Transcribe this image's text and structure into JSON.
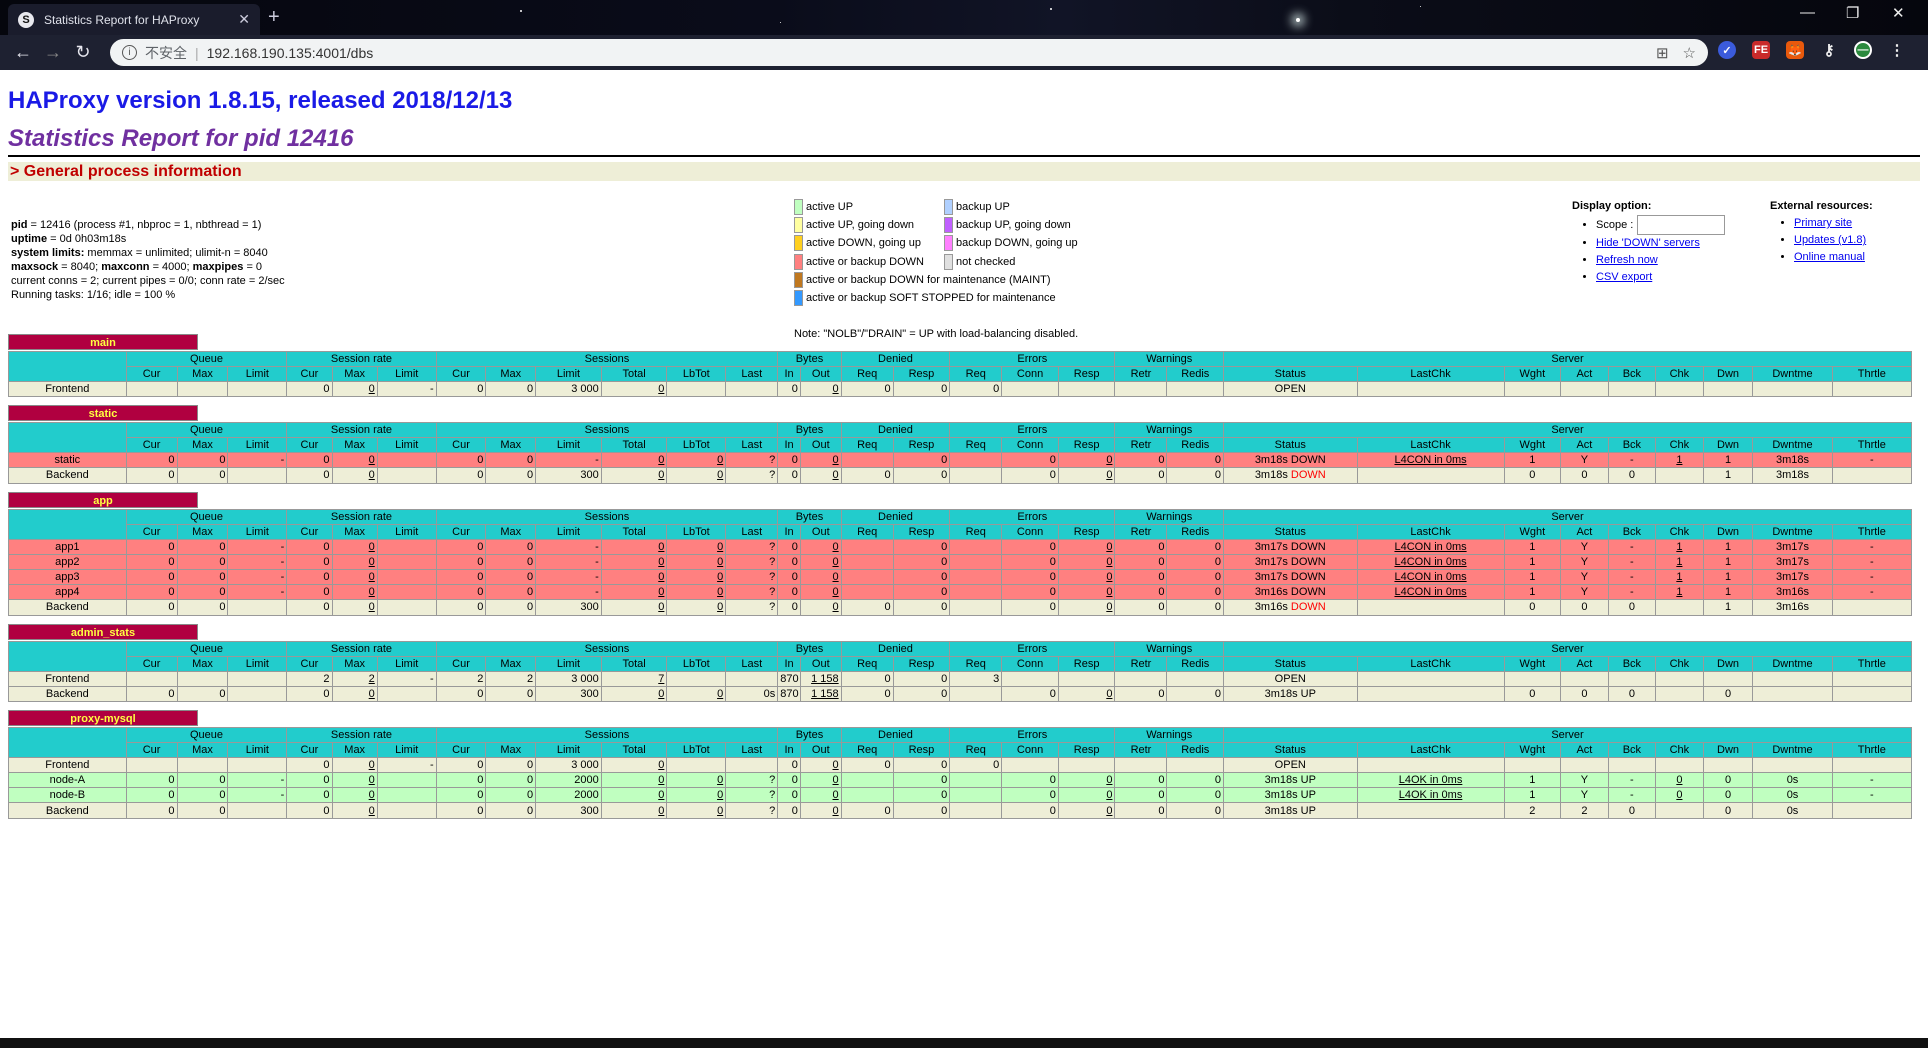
{
  "browser": {
    "tab_title": "Statistics Report for HAProxy",
    "url": "192.168.190.135:4001/dbs",
    "insecure_label": "不安全"
  },
  "page": {
    "title": "HAProxy version 1.8.15, released 2018/12/13",
    "subtitle": "Statistics Report for pid 12416",
    "section": "> General process information"
  },
  "process": {
    "pid_k": "pid",
    "pid_v": " = 12416 (process #1, nbproc = 1, nbthread = 1)",
    "uptime_k": "uptime",
    "uptime_v": " = 0d 0h03m18s",
    "limits_k": "system limits:",
    "limits_v": " memmax = unlimited; ulimit-n = 8040",
    "maxsock_k": "maxsock",
    "maxsock_v": " = 8040; ",
    "maxconn_k": "maxconn",
    "maxconn_v": " = 4000; ",
    "maxpipes_k": "maxpipes",
    "maxpipes_v": " = 0",
    "conns": "current conns = 2; current pipes = 0/0; conn rate = 2/sec",
    "tasks": "Running tasks: 1/16; idle = 100 %"
  },
  "legend": {
    "col1": [
      {
        "color": "#c0ffc0",
        "label": "active UP"
      },
      {
        "color": "#ffffa0",
        "label": "active UP, going down"
      },
      {
        "color": "#ffd020",
        "label": "active DOWN, going up"
      },
      {
        "color": "#ff8080",
        "label": "active or backup DOWN"
      },
      {
        "color": "#c07820",
        "label": "active or backup DOWN for maintenance (MAINT)"
      },
      {
        "color": "#3399ff",
        "label": "active or backup SOFT STOPPED for maintenance"
      }
    ],
    "col2": [
      {
        "color": "#b0d0ff",
        "label": "backup UP"
      },
      {
        "color": "#c060ff",
        "label": "backup UP, going down"
      },
      {
        "color": "#ff80ff",
        "label": "backup DOWN, going up"
      },
      {
        "color": "#e0e0e0",
        "label": "not checked"
      }
    ],
    "note": "Note: \"NOLB\"/\"DRAIN\" = UP with load-balancing disabled."
  },
  "display": {
    "title": "Display option:",
    "scope_label": "Scope :",
    "hide_down": "Hide 'DOWN' servers",
    "refresh": "Refresh now",
    "csv": "CSV export"
  },
  "external": {
    "title": "External resources:",
    "primary": "Primary site",
    "updates": "Updates (v1.8)",
    "manual": "Online manual"
  },
  "groups": [
    "",
    "Queue",
    "Session rate",
    "Sessions",
    "Bytes",
    "Denied",
    "Errors",
    "Warnings",
    "Server"
  ],
  "subcols": [
    "",
    "Cur",
    "Max",
    "Limit",
    "Cur",
    "Max",
    "Limit",
    "Cur",
    "Max",
    "Limit",
    "Total",
    "LbTot",
    "Last",
    "In",
    "Out",
    "Req",
    "Resp",
    "Req",
    "Conn",
    "Resp",
    "Retr",
    "Redis",
    "Status",
    "LastChk",
    "Wght",
    "Act",
    "Bck",
    "Chk",
    "Dwn",
    "Dwntme",
    "Thrtle"
  ],
  "proxies": [
    {
      "name": "main",
      "rows": [
        {
          "cls": "fe",
          "cells": [
            "Frontend",
            "",
            "",
            "",
            "0",
            "0",
            "-",
            "0",
            "0",
            "3 000",
            "0",
            "",
            "",
            "0",
            "0",
            "0",
            "0",
            "0",
            "",
            "",
            "",
            "",
            "OPEN",
            "",
            "",
            "",
            "",
            "",
            "",
            "",
            ""
          ]
        }
      ]
    },
    {
      "name": "static",
      "rows": [
        {
          "cls": "down",
          "cells": [
            "static",
            "0",
            "0",
            "-",
            "0",
            "0",
            "",
            "0",
            "0",
            "-",
            "0",
            "0",
            "?",
            "0",
            "0",
            "",
            "0",
            "",
            "0",
            "0",
            "0",
            "0",
            "3m18s DOWN",
            "L4CON in 0ms",
            "1",
            "Y",
            "-",
            "1",
            "1",
            "3m18s",
            "-"
          ]
        },
        {
          "cls": "be",
          "cells": [
            "Backend",
            "0",
            "0",
            "",
            "0",
            "0",
            "",
            "0",
            "0",
            "300",
            "0",
            "0",
            "?",
            "0",
            "0",
            "0",
            "0",
            "",
            "0",
            "0",
            "0",
            "0",
            "3m18s DOWN",
            "",
            "0",
            "0",
            "0",
            "",
            "1",
            "3m18s",
            ""
          ]
        }
      ]
    },
    {
      "name": "app",
      "rows": [
        {
          "cls": "down",
          "cells": [
            "app1",
            "0",
            "0",
            "-",
            "0",
            "0",
            "",
            "0",
            "0",
            "-",
            "0",
            "0",
            "?",
            "0",
            "0",
            "",
            "0",
            "",
            "0",
            "0",
            "0",
            "0",
            "3m17s DOWN",
            "L4CON in 0ms",
            "1",
            "Y",
            "-",
            "1",
            "1",
            "3m17s",
            "-"
          ]
        },
        {
          "cls": "down",
          "cells": [
            "app2",
            "0",
            "0",
            "-",
            "0",
            "0",
            "",
            "0",
            "0",
            "-",
            "0",
            "0",
            "?",
            "0",
            "0",
            "",
            "0",
            "",
            "0",
            "0",
            "0",
            "0",
            "3m17s DOWN",
            "L4CON in 0ms",
            "1",
            "Y",
            "-",
            "1",
            "1",
            "3m17s",
            "-"
          ]
        },
        {
          "cls": "down",
          "cells": [
            "app3",
            "0",
            "0",
            "-",
            "0",
            "0",
            "",
            "0",
            "0",
            "-",
            "0",
            "0",
            "?",
            "0",
            "0",
            "",
            "0",
            "",
            "0",
            "0",
            "0",
            "0",
            "3m17s DOWN",
            "L4CON in 0ms",
            "1",
            "Y",
            "-",
            "1",
            "1",
            "3m17s",
            "-"
          ]
        },
        {
          "cls": "down",
          "cells": [
            "app4",
            "0",
            "0",
            "-",
            "0",
            "0",
            "",
            "0",
            "0",
            "-",
            "0",
            "0",
            "?",
            "0",
            "0",
            "",
            "0",
            "",
            "0",
            "0",
            "0",
            "0",
            "3m16s DOWN",
            "L4CON in 0ms",
            "1",
            "Y",
            "-",
            "1",
            "1",
            "3m16s",
            "-"
          ]
        },
        {
          "cls": "be",
          "cells": [
            "Backend",
            "0",
            "0",
            "",
            "0",
            "0",
            "",
            "0",
            "0",
            "300",
            "0",
            "0",
            "?",
            "0",
            "0",
            "0",
            "0",
            "",
            "0",
            "0",
            "0",
            "0",
            "3m16s DOWN",
            "",
            "0",
            "0",
            "0",
            "",
            "1",
            "3m16s",
            ""
          ]
        }
      ]
    },
    {
      "name": "admin_stats",
      "rows": [
        {
          "cls": "fe",
          "cells": [
            "Frontend",
            "",
            "",
            "",
            "2",
            "2",
            "-",
            "2",
            "2",
            "3 000",
            "7",
            "",
            "",
            "870",
            "1 158",
            "0",
            "0",
            "3",
            "",
            "",
            "",
            "",
            "OPEN",
            "",
            "",
            "",
            "",
            "",
            "",
            "",
            ""
          ]
        },
        {
          "cls": "be",
          "cells": [
            "Backend",
            "0",
            "0",
            "",
            "0",
            "0",
            "",
            "0",
            "0",
            "300",
            "0",
            "0",
            "0s",
            "870",
            "1 158",
            "0",
            "0",
            "",
            "0",
            "0",
            "0",
            "0",
            "3m18s UP",
            "",
            "0",
            "0",
            "0",
            "",
            "0",
            "",
            ""
          ]
        }
      ]
    },
    {
      "name": "proxy-mysql",
      "rows": [
        {
          "cls": "fe",
          "cells": [
            "Frontend",
            "",
            "",
            "",
            "0",
            "0",
            "-",
            "0",
            "0",
            "3 000",
            "0",
            "",
            "",
            "0",
            "0",
            "0",
            "0",
            "0",
            "",
            "",
            "",
            "",
            "OPEN",
            "",
            "",
            "",
            "",
            "",
            "",
            "",
            ""
          ]
        },
        {
          "cls": "up",
          "cells": [
            "node-A",
            "0",
            "0",
            "-",
            "0",
            "0",
            "",
            "0",
            "0",
            "2000",
            "0",
            "0",
            "?",
            "0",
            "0",
            "",
            "0",
            "",
            "0",
            "0",
            "0",
            "0",
            "3m18s UP",
            "L4OK in 0ms",
            "1",
            "Y",
            "-",
            "0",
            "0",
            "0s",
            "-"
          ]
        },
        {
          "cls": "up",
          "cells": [
            "node-B",
            "0",
            "0",
            "-",
            "0",
            "0",
            "",
            "0",
            "0",
            "2000",
            "0",
            "0",
            "?",
            "0",
            "0",
            "",
            "0",
            "",
            "0",
            "0",
            "0",
            "0",
            "3m18s UP",
            "L4OK in 0ms",
            "1",
            "Y",
            "-",
            "0",
            "0",
            "0s",
            "-"
          ]
        },
        {
          "cls": "be",
          "cells": [
            "Backend",
            "0",
            "0",
            "",
            "0",
            "0",
            "",
            "0",
            "0",
            "300",
            "0",
            "0",
            "?",
            "0",
            "0",
            "0",
            "0",
            "",
            "0",
            "0",
            "0",
            "0",
            "3m18s UP",
            "",
            "2",
            "2",
            "0",
            "",
            "0",
            "0s",
            ""
          ]
        }
      ]
    }
  ]
}
